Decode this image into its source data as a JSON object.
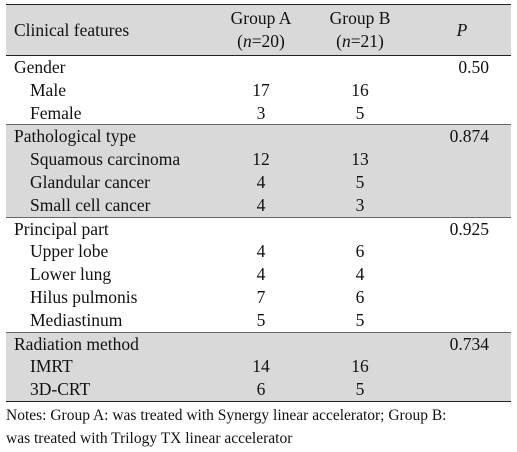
{
  "table": {
    "header": {
      "feature": "Clinical features",
      "group_a_name": "Group A",
      "group_a_n": "(n=20)",
      "group_b_name": "Group B",
      "group_b_n": "(n=21)",
      "p": "P"
    },
    "groups": [
      {
        "label": "Gender",
        "p": "0.50",
        "rows": [
          {
            "label": "Male",
            "a": "17",
            "b": "16"
          },
          {
            "label": "Female",
            "a": "3",
            "b": "5"
          }
        ]
      },
      {
        "label": "Pathological type",
        "p": "0.874",
        "rows": [
          {
            "label": "Squamous carcinoma",
            "a": "12",
            "b": "13"
          },
          {
            "label": "Glandular cancer",
            "a": "4",
            "b": "5"
          },
          {
            "label": "Small cell cancer",
            "a": "4",
            "b": "3"
          }
        ]
      },
      {
        "label": "Principal part",
        "p": "0.925",
        "rows": [
          {
            "label": "Upper lobe",
            "a": "4",
            "b": "6"
          },
          {
            "label": "Lower lung",
            "a": "4",
            "b": "4"
          },
          {
            "label": "Hilus pulmonis",
            "a": "7",
            "b": "6"
          },
          {
            "label": "Mediastinum",
            "a": "5",
            "b": "5"
          }
        ]
      },
      {
        "label": "Radiation method",
        "p": "0.734",
        "rows": [
          {
            "label": "IMRT",
            "a": "14",
            "b": "16"
          },
          {
            "label": "3D-CRT",
            "a": "6",
            "b": "5"
          }
        ]
      }
    ]
  },
  "notes": {
    "line1": "Notes: Group A: was treated with Synergy linear accelerator; Group B:",
    "line2": "was treated with Trilogy TX linear accelerator"
  },
  "colors": {
    "shade": "#d9d9d9",
    "text": "#111111"
  }
}
